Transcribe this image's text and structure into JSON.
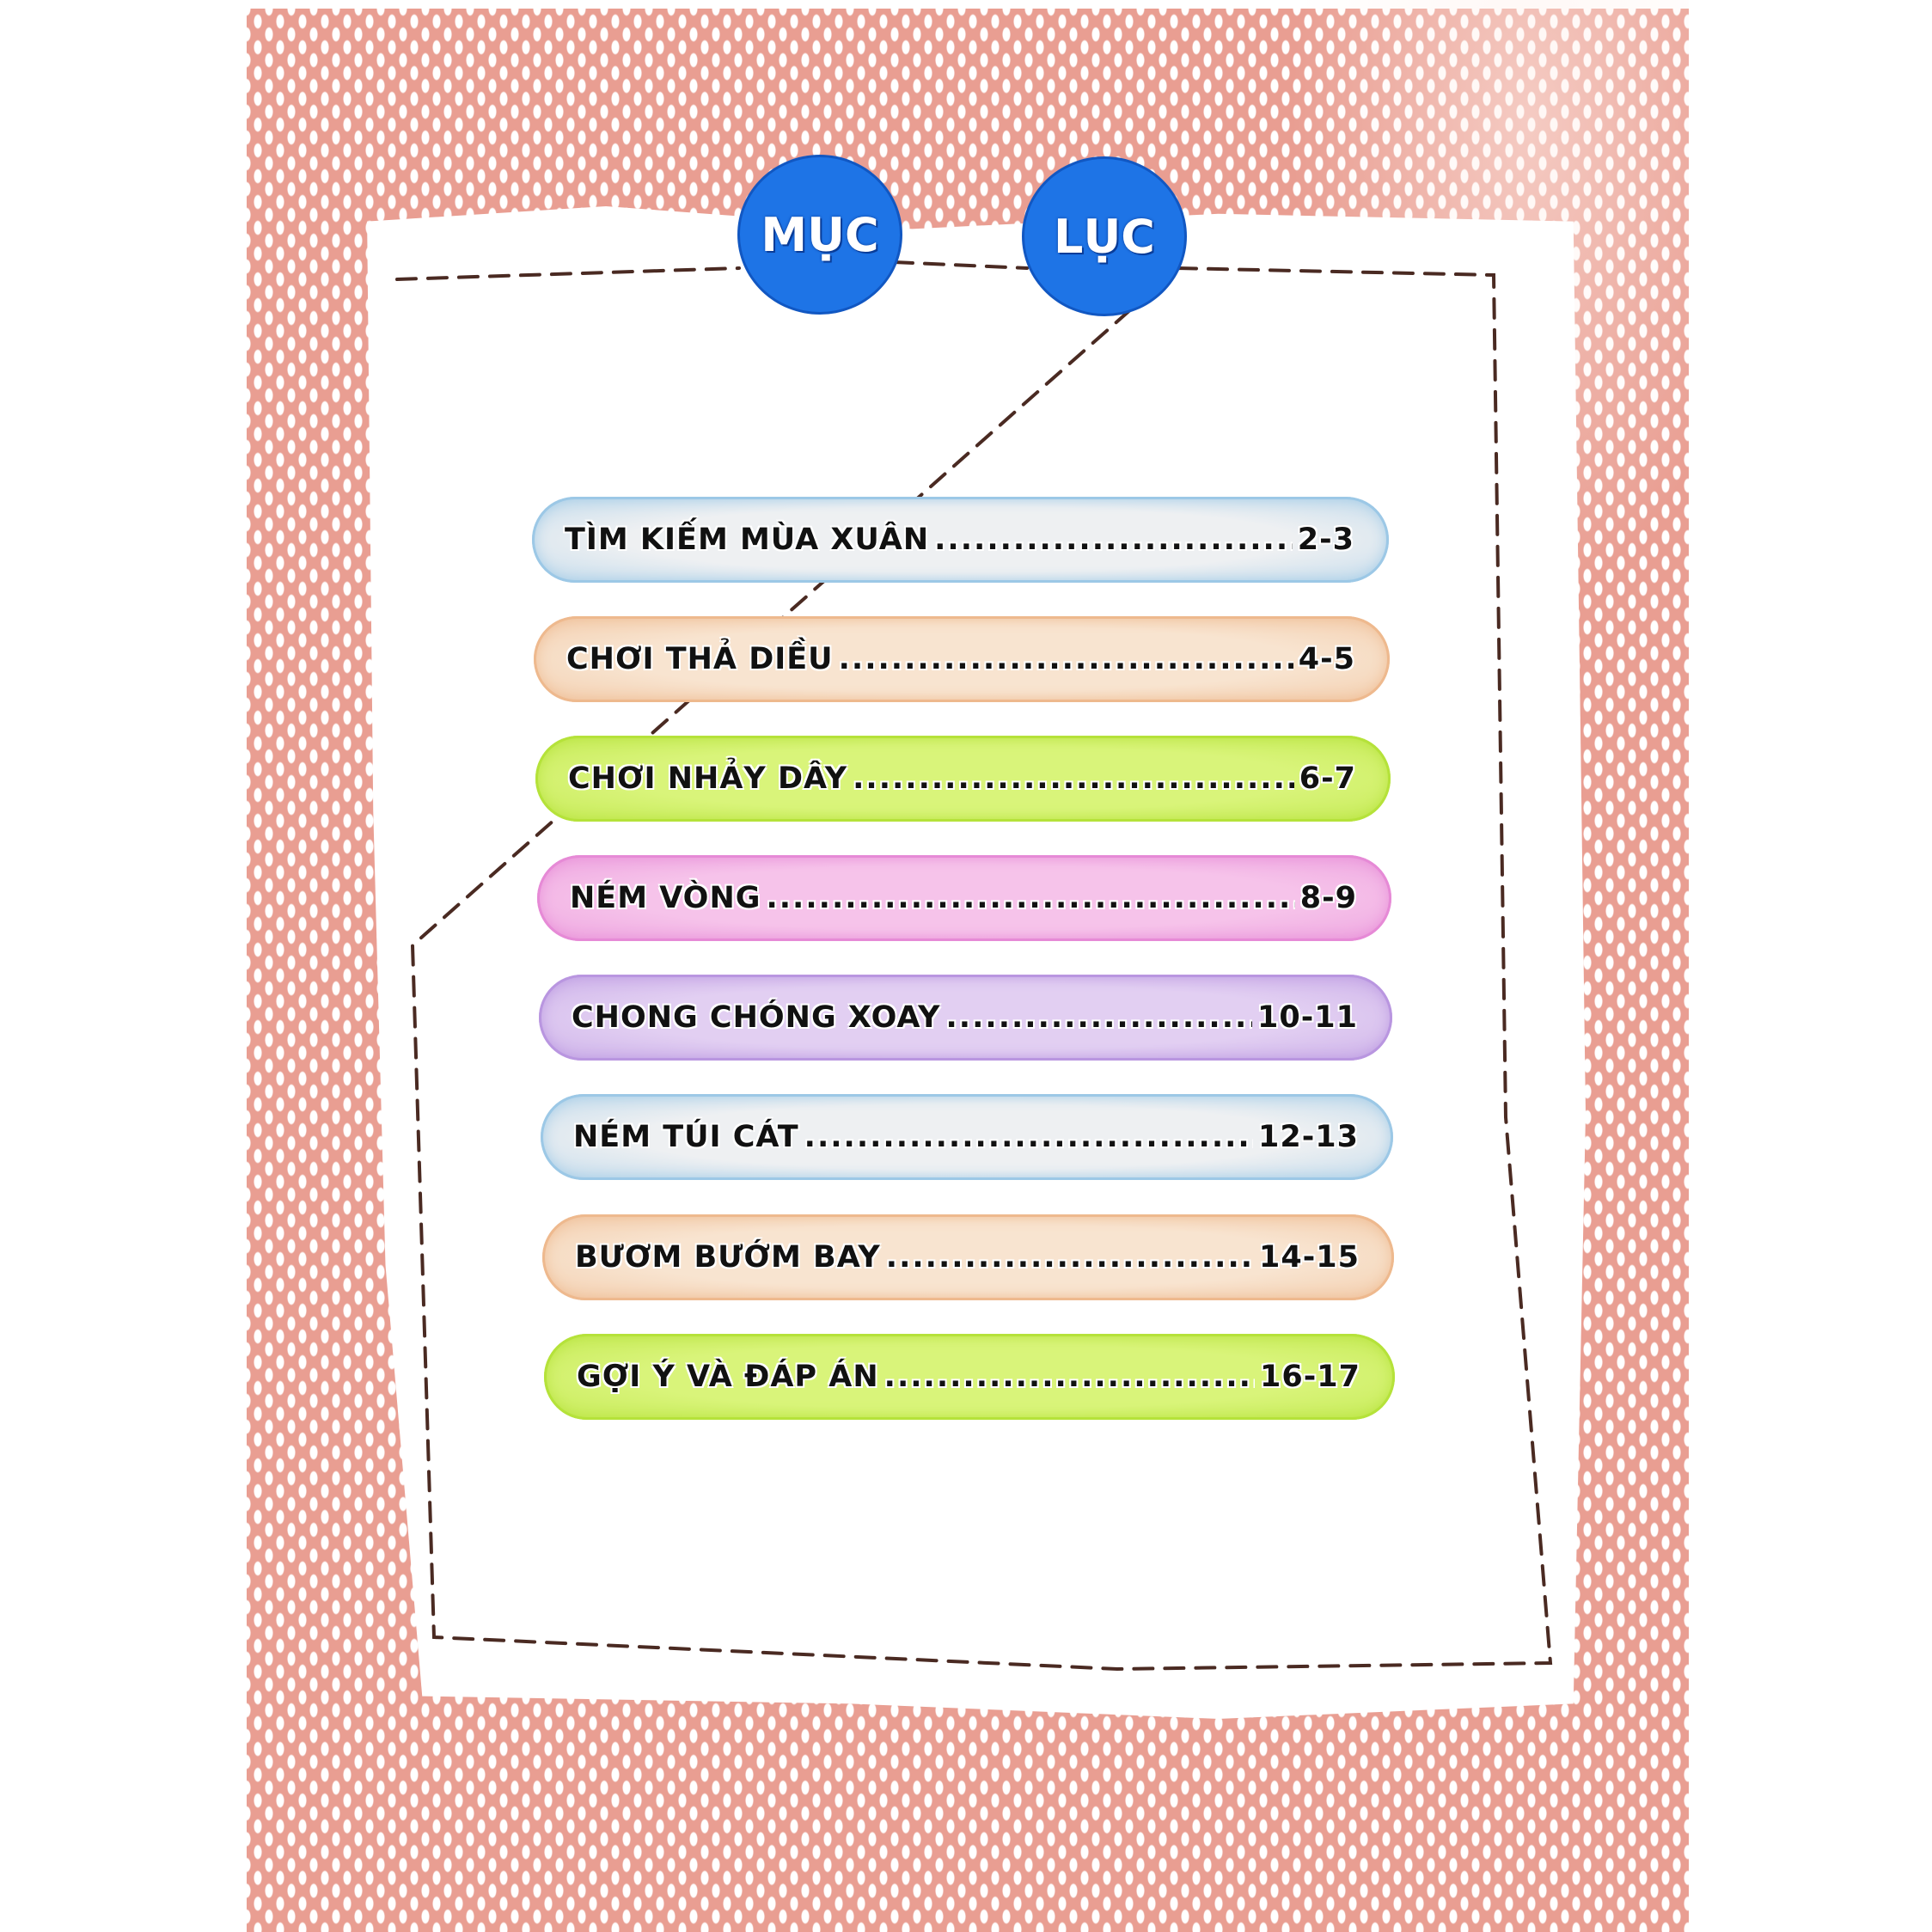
{
  "title": {
    "word1": "MỤC",
    "word2": "LỤC"
  },
  "colors": {
    "background": "#e99e92",
    "badge": "#1e74e6",
    "dash": "#4a2a22"
  },
  "entries": [
    {
      "label": "TÌM KIẾM MÙA XUÂN",
      "pages": "2-3",
      "fill": "#eef0f2",
      "edge": "#9cc8e6"
    },
    {
      "label": "CHƠI THẢ DIỀU",
      "pages": "4-5",
      "fill": "#f8e4d0",
      "edge": "#eeb98e"
    },
    {
      "label": "CHƠI NHẢY DÂY",
      "pages": "6-7",
      "fill": "#d9f47a",
      "edge": "#b5e23a"
    },
    {
      "label": "NÉM VÒNG",
      "pages": "8-9",
      "fill": "#f6c3ea",
      "edge": "#e68ad6"
    },
    {
      "label": "CHONG CHÓNG XOAY",
      "pages": "10-11",
      "fill": "#e2cff2",
      "edge": "#b996e0"
    },
    {
      "label": "NÉM TÚI CÁT",
      "pages": "12-13",
      "fill": "#eef0f2",
      "edge": "#9cc8e6"
    },
    {
      "label": "BƯƠM BƯỚM BAY",
      "pages": "14-15",
      "fill": "#f8e4d0",
      "edge": "#eeb98e"
    },
    {
      "label": "GỢI Ý VÀ ĐÁP ÁN",
      "pages": "16-17",
      "fill": "#d9f47a",
      "edge": "#b5e23a"
    }
  ]
}
